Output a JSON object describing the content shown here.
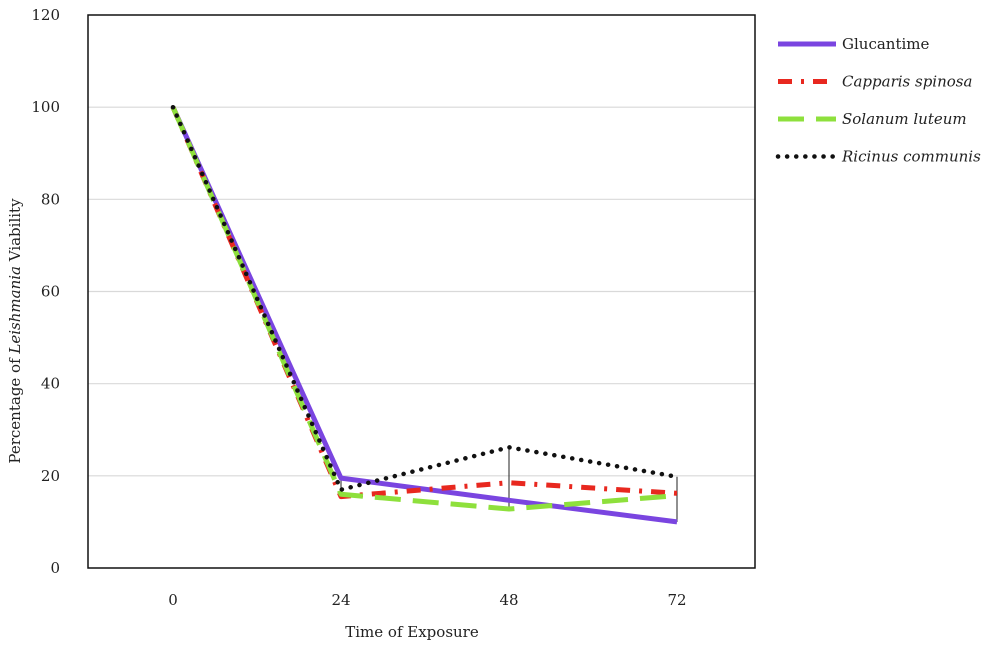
{
  "chart_data": {
    "type": "line",
    "x": [
      0,
      24,
      48,
      72
    ],
    "categories": [
      "0",
      "24",
      "48",
      "72"
    ],
    "xlabel": "Time of Exposure",
    "ylabel_parts": [
      "Percentage of ",
      "Leishmania",
      " Viability"
    ],
    "ylim": [
      0,
      120
    ],
    "yticks": [
      0,
      20,
      40,
      60,
      80,
      100,
      120
    ],
    "grid": true,
    "legend_position": "right",
    "series": [
      {
        "name": "Glucantime",
        "italic": false,
        "color": "#7a45e0",
        "dash": "solid",
        "values": [
          100,
          19.5,
          14.7,
          10
        ]
      },
      {
        "name": "Capparis spinosa",
        "italic": true,
        "color": "#e8281f",
        "dash": "dash-dot",
        "values": [
          100,
          15.5,
          18.5,
          16.2
        ]
      },
      {
        "name": "Solanum luteum",
        "italic": true,
        "color": "#8ee03c",
        "dash": "long-dash",
        "values": [
          100,
          16,
          12.8,
          15.7
        ]
      },
      {
        "name": "Ricinus communis",
        "italic": true,
        "color": "#111111",
        "dash": "dotted",
        "values": [
          100,
          17,
          26.2,
          19.8
        ]
      }
    ]
  }
}
